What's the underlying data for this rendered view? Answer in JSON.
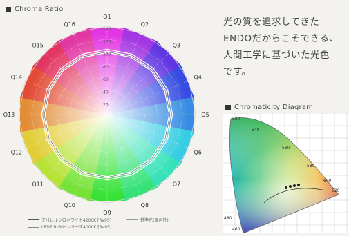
{
  "chroma": {
    "title": "Chroma Ratio",
    "labels": [
      "Q1",
      "Q2",
      "Q3",
      "Q4",
      "Q5",
      "Q6",
      "Q7",
      "Q8",
      "Q9",
      "Q10",
      "Q11",
      "Q12",
      "Q13",
      "Q14",
      "Q15",
      "Q16"
    ],
    "ticks": [
      "140",
      "120",
      "100",
      "80",
      "60",
      "40",
      "20"
    ],
    "legend": {
      "a": "アパレルシロホワイト4200K [Ra95]",
      "b": "基準光(演色性)",
      "c": "LEDZ Rt60Hシリーズ4000K [Ra95]"
    }
  },
  "tagline": {
    "line1": "光の質を追求してきた",
    "line2": "ENDOだからこそできる、",
    "line3": "人間工学に基づいた光色",
    "line4": "です。"
  },
  "cie": {
    "title": "Chromaticity Diagram",
    "labels": [
      "520",
      "540",
      "560",
      "580",
      "600",
      "620",
      "480",
      "460"
    ]
  },
  "colors": {
    "background": "#f3f2ee",
    "text": "#3a3a3a",
    "grid": "#ffffff"
  }
}
